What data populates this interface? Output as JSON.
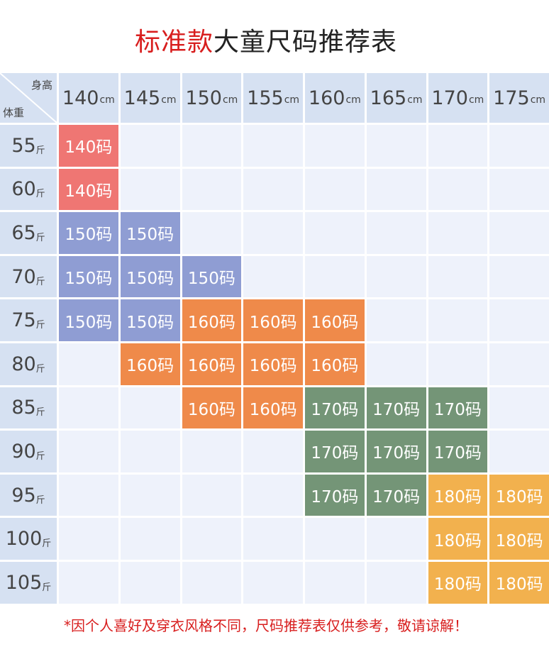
{
  "title": {
    "red_part": "标准款",
    "rest": "大童尺码推荐表"
  },
  "corner": {
    "height_label": "身高",
    "weight_label": "体重"
  },
  "height_unit": "cm",
  "weight_unit": "斤",
  "heights": [
    "140",
    "145",
    "150",
    "155",
    "160",
    "165",
    "170",
    "175"
  ],
  "weights": [
    "55",
    "60",
    "65",
    "70",
    "75",
    "80",
    "85",
    "90",
    "95",
    "100",
    "105"
  ],
  "colors": {
    "140码": "#ef7673",
    "150码": "#8f9dd3",
    "160码": "#ef8a4a",
    "170码": "#749577",
    "180码": "#f2b14e"
  },
  "table": [
    [
      "140码",
      "",
      "",
      "",
      "",
      "",
      "",
      ""
    ],
    [
      "140码",
      "",
      "",
      "",
      "",
      "",
      "",
      ""
    ],
    [
      "150码",
      "150码",
      "",
      "",
      "",
      "",
      "",
      ""
    ],
    [
      "150码",
      "150码",
      "150码",
      "",
      "",
      "",
      "",
      ""
    ],
    [
      "150码",
      "150码",
      "160码",
      "160码",
      "160码",
      "",
      "",
      ""
    ],
    [
      "",
      "160码",
      "160码",
      "160码",
      "160码",
      "",
      "",
      ""
    ],
    [
      "",
      "",
      "160码",
      "160码",
      "170码",
      "170码",
      "170码",
      ""
    ],
    [
      "",
      "",
      "",
      "",
      "170码",
      "170码",
      "170码",
      ""
    ],
    [
      "",
      "",
      "",
      "",
      "170码",
      "170码",
      "180码",
      "180码"
    ],
    [
      "",
      "",
      "",
      "",
      "",
      "",
      "180码",
      "180码"
    ],
    [
      "",
      "",
      "",
      "",
      "",
      "",
      "180码",
      "180码"
    ]
  ],
  "note": "*因个人喜好及穿衣风格不同，尺码推荐表仅供参考，敬请谅解！"
}
